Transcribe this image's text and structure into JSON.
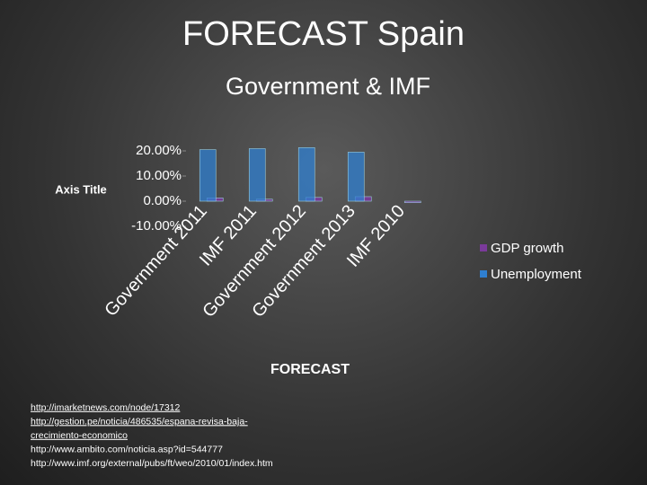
{
  "chart_data": {
    "type": "bar",
    "title": "FORECAST Spain",
    "subtitle": "Government & IMF",
    "y_axis_label": "Axis Title",
    "x_axis_label": "FORECAST",
    "categories": [
      "Government 2011",
      "IMF 2011",
      "Government 2012",
      "Government 2013",
      "IMF 2010"
    ],
    "series": [
      {
        "name": "GDP growth",
        "color": "#7a3a9a",
        "values": [
          1.3,
          0.8,
          1.5,
          1.8,
          -0.6
        ]
      },
      {
        "name": "Unemployment",
        "color": "#2f7fd0",
        "values": [
          20.5,
          20.9,
          21.3,
          19.5,
          null
        ]
      }
    ],
    "ylim": [
      -10,
      20
    ],
    "yticks": [
      {
        "value": 20,
        "label": "20.00%"
      },
      {
        "value": 10,
        "label": "10.00%"
      },
      {
        "value": 0,
        "label": "0.00%"
      },
      {
        "value": -10,
        "label": "-10.00%"
      }
    ],
    "legend": "right"
  },
  "sources": [
    "http://imarketnews.com/node/17312",
    "http://gestion.pe/noticia/486535/espana-revisa-baja-",
    "crecimiento-economico",
    "http://www.ambito.com/noticia.asp?id=544777",
    "http://www.imf.org/external/pubs/ft/weo/2010/01/index.htm"
  ]
}
